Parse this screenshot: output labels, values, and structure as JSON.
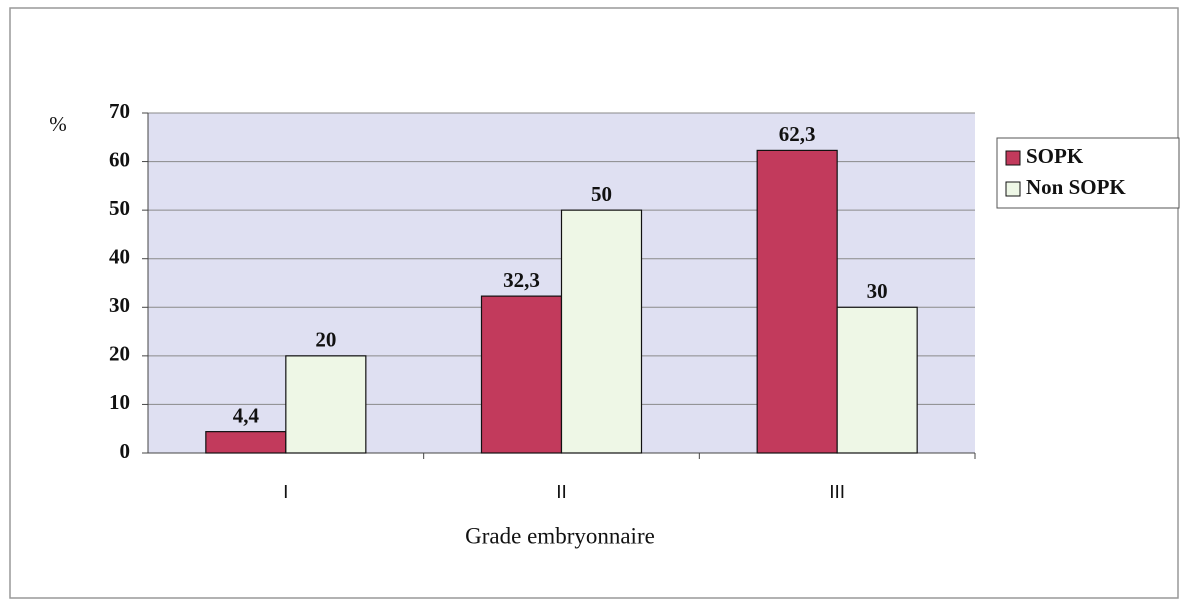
{
  "chart_data": {
    "type": "bar",
    "y_label": "%",
    "x_label": "Grade embryonnaire",
    "categories": [
      "I",
      "II",
      "III"
    ],
    "series": [
      {
        "name": "SOPK",
        "color": "#c23a5c",
        "values": [
          4.4,
          32.3,
          62.3
        ],
        "value_labels": [
          "4,4",
          "32,3",
          "62,3"
        ]
      },
      {
        "name": "Non SOPK",
        "color": "#eef7e6",
        "values": [
          20,
          50,
          30
        ]
      }
    ],
    "ylim": [
      0,
      70
    ],
    "yticks": [
      0,
      10,
      20,
      30,
      40,
      50,
      60,
      70
    ],
    "grid": true,
    "legend": "right",
    "plot_background": "#dfe0f2"
  }
}
